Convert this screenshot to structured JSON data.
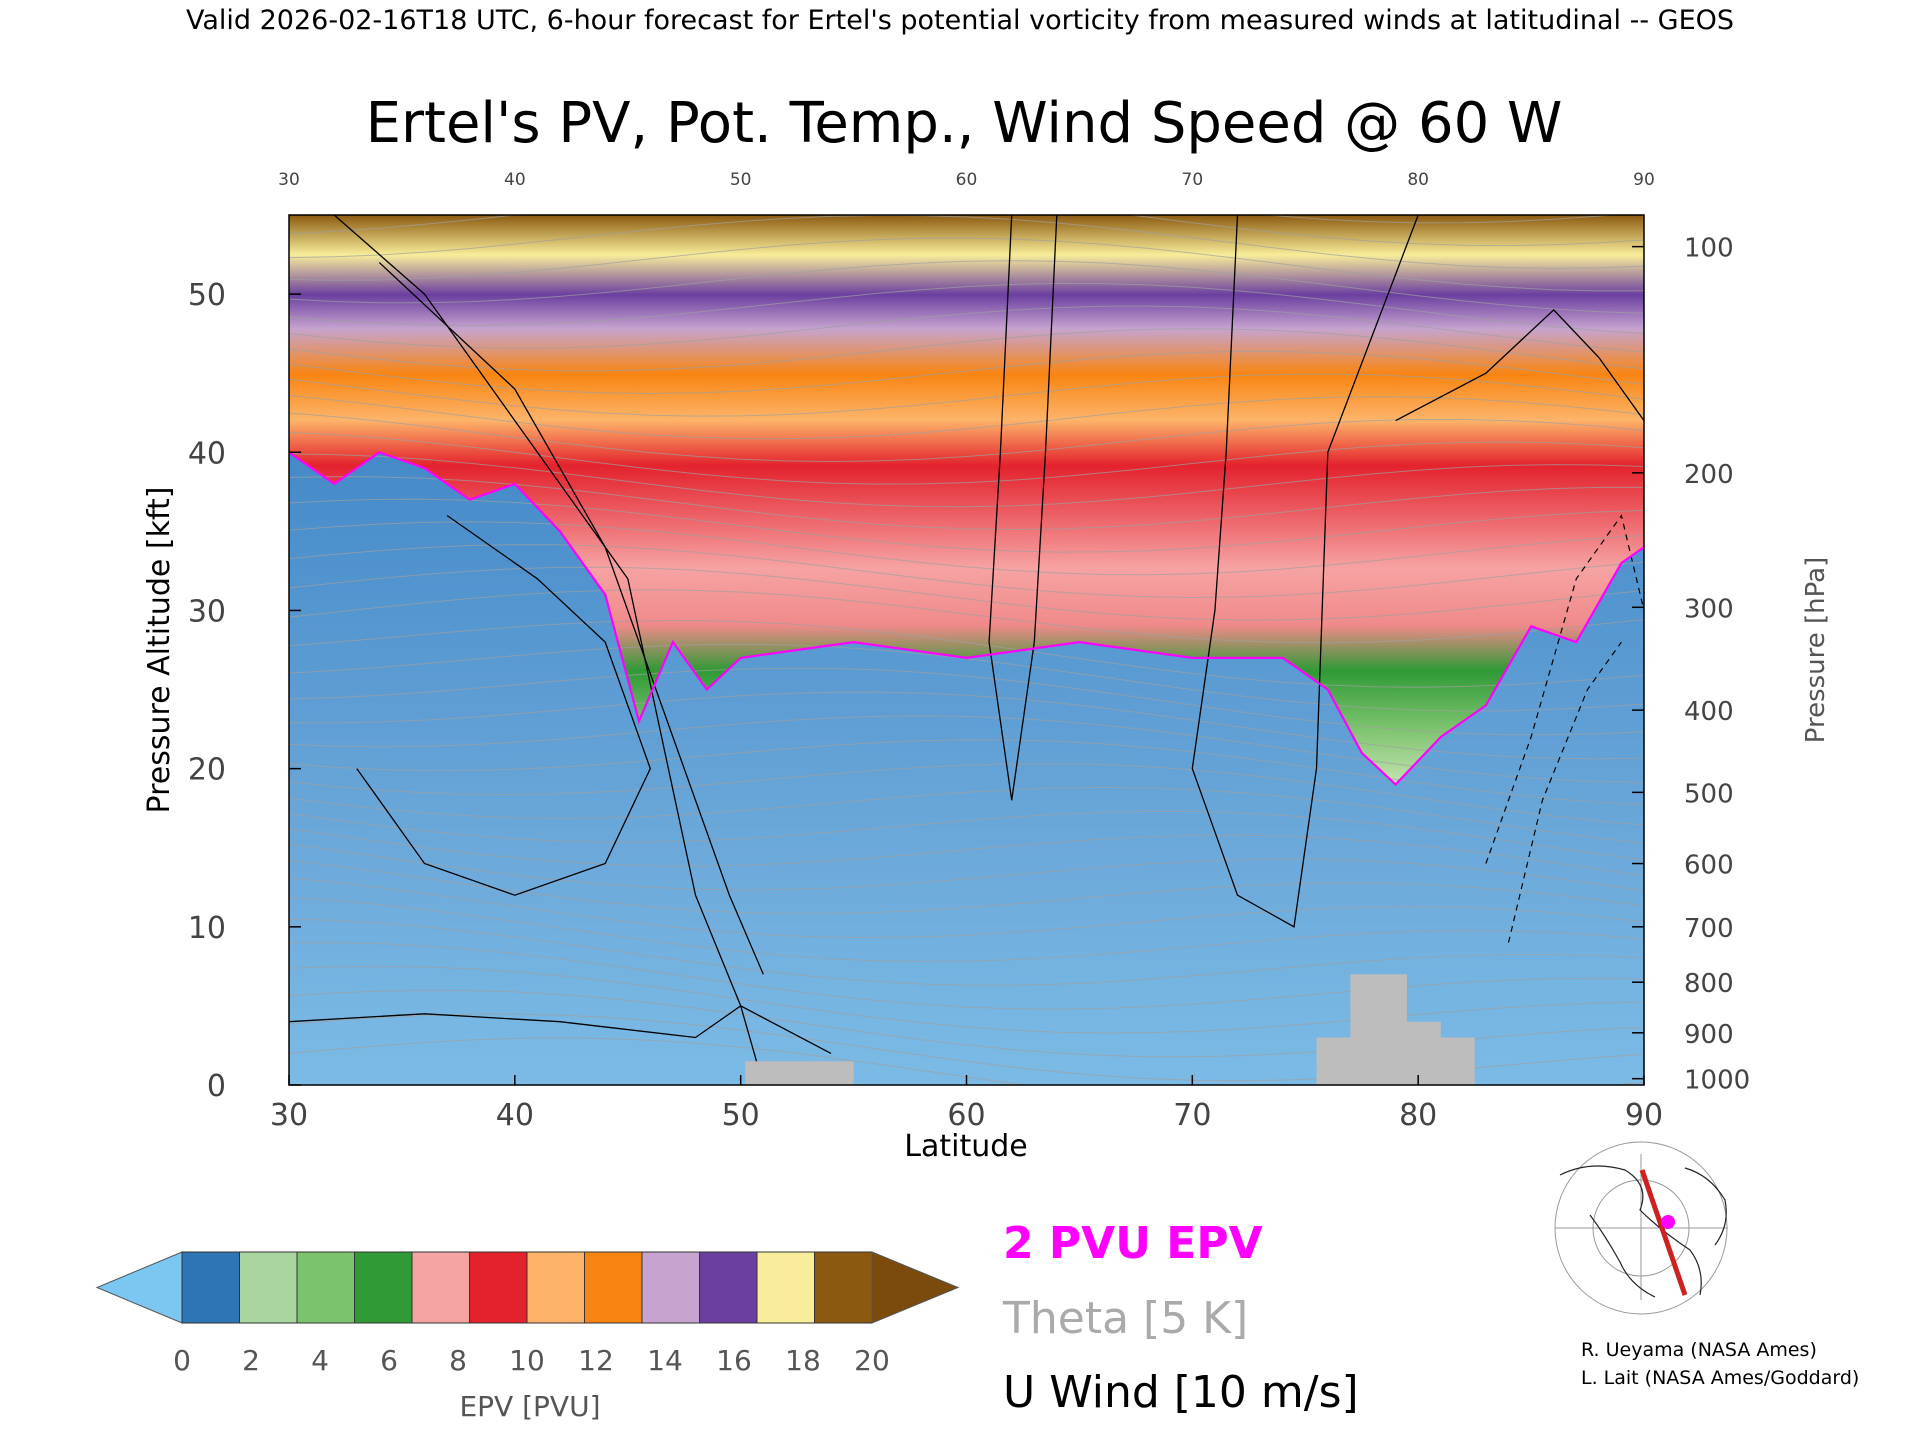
{
  "header": "Valid 2026-02-16T18 UTC, 6-hour forecast for Ertel's potential vorticity from measured winds at latitudinal -- GEOS",
  "chart_data": {
    "type": "heatmap",
    "title": "Ertel's PV, Pot. Temp., Wind Speed @ 60 W",
    "xlabel": "Latitude",
    "ylabel": "Pressure Altitude [kft]",
    "y2label": "Pressure [hPa]",
    "xlim": [
      30,
      90
    ],
    "ylim": [
      0,
      55
    ],
    "x_ticks": [
      "30",
      "40",
      "50",
      "60",
      "70",
      "80",
      "90"
    ],
    "y_ticks": [
      "0",
      "10",
      "20",
      "30",
      "40",
      "50"
    ],
    "pressure_ticks": [
      {
        "label": "100",
        "kft": 53.0
      },
      {
        "label": "200",
        "kft": 38.7
      },
      {
        "label": "300",
        "kft": 30.2
      },
      {
        "label": "400",
        "kft": 23.7
      },
      {
        "label": "500",
        "kft": 18.5
      },
      {
        "label": "600",
        "kft": 14.0
      },
      {
        "label": "700",
        "kft": 10.0
      },
      {
        "label": "800",
        "kft": 6.5
      },
      {
        "label": "900",
        "kft": 3.3
      },
      {
        "label": "1000",
        "kft": 0.4
      }
    ],
    "tropopause_2pvu_kft": {
      "lat": [
        30,
        32,
        34,
        36,
        38,
        40,
        42,
        44,
        45.5,
        47,
        48.5,
        50,
        55,
        60,
        65,
        70,
        74,
        76,
        77.5,
        79,
        81,
        83,
        85,
        87,
        89,
        90
      ],
      "kft": [
        40,
        38,
        40,
        39,
        37,
        38,
        35,
        31,
        23,
        28,
        25,
        27,
        28,
        27,
        28,
        27,
        27,
        25,
        21,
        19,
        22,
        24,
        29,
        28,
        33,
        34
      ]
    },
    "epv_bands_pvu": [
      {
        "band": "stratosphere-green",
        "pvu": 4
      },
      {
        "band": "red",
        "pvu": 9
      },
      {
        "band": "orange",
        "pvu": 12
      },
      {
        "band": "purple",
        "pvu": 16
      },
      {
        "band": "brown",
        "pvu": 20
      }
    ],
    "u_wind_contours_ms": [
      10,
      50
    ],
    "topography_lat": [
      [
        50.2,
        55
      ],
      [
        75.5,
        82.5
      ]
    ],
    "colorbar": {
      "label": "EPV [PVU]",
      "ticks": [
        "0",
        "2",
        "4",
        "6",
        "8",
        "10",
        "12",
        "14",
        "16",
        "18",
        "20"
      ],
      "colors": [
        "#2e75b6",
        "#a9d5a0",
        "#7cc36e",
        "#2f9a36",
        "#f6a3a3",
        "#e3222d",
        "#fdb46a",
        "#f88512",
        "#c6a4cf",
        "#6b3fa0",
        "#f8ed9a",
        "#8b5a10"
      ],
      "under_color": "#7cc7f2",
      "over_color": "#7a4b0c"
    },
    "legend": [
      {
        "text": "2 PVU EPV",
        "color": "#ff00ff"
      },
      {
        "text": "Theta [5 K]",
        "color": "#aaaaaa"
      },
      {
        "text": "U Wind [10 m/s]",
        "color": "#000000"
      }
    ],
    "map_inset": {
      "track_color": "#cc2222",
      "marker_color": "#ff00ff"
    }
  },
  "credits": [
    "R. Ueyama (NASA Ames)",
    "L. Lait (NASA Ames/Goddard)"
  ]
}
